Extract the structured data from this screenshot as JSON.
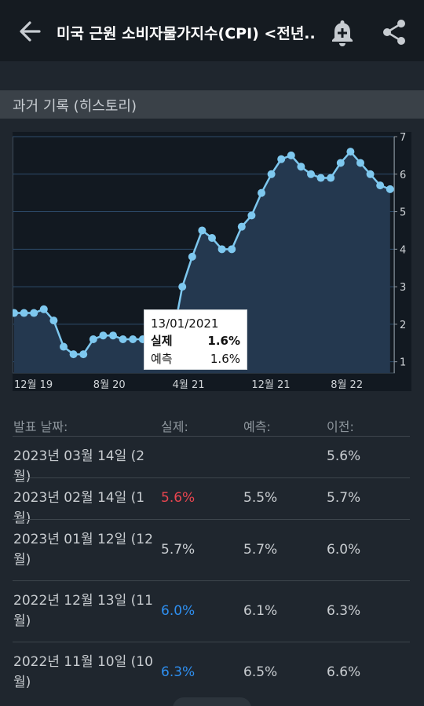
{
  "header": {
    "title": "미국 근원 소비자물가지수(CPI) <전년...",
    "back_icon": "back-arrow-icon",
    "alert_icon": "add-alert-bell-icon",
    "share_icon": "share-icon"
  },
  "section": {
    "title": "과거 기록 (히스토리)"
  },
  "chart_data": {
    "type": "area",
    "x_tick_labels": [
      "12월 19",
      "8월 20",
      "4월 21",
      "12월 21",
      "8월 22"
    ],
    "y_ticks": [
      1,
      2,
      3,
      4,
      5,
      6,
      7
    ],
    "ylim": [
      0.7,
      7
    ],
    "grid": true,
    "series": [
      {
        "values": [
          2.3,
          2.3,
          2.3,
          2.4,
          2.1,
          1.4,
          1.2,
          1.2,
          1.6,
          1.7,
          1.7,
          1.6,
          1.6,
          1.6,
          1.6,
          1.4,
          1.6,
          3.0,
          3.8,
          4.5,
          4.3,
          4.0,
          4.0,
          4.6,
          4.9,
          5.5,
          6.0,
          6.4,
          6.5,
          6.2,
          6.0,
          5.9,
          5.9,
          6.3,
          6.6,
          6.3,
          6.0,
          5.7,
          5.6
        ]
      }
    ],
    "colors": {
      "line": "#7ec8ef",
      "fill": "#24384f",
      "grid": "#2d4b6a",
      "background": "#121921"
    }
  },
  "tooltip": {
    "date": "13/01/2021",
    "actual_label": "실제",
    "actual_value": "1.6%",
    "forecast_label": "예측",
    "forecast_value": "1.6%"
  },
  "table": {
    "headers": [
      "발표 날짜:",
      "실제:",
      "예측:",
      "이전:"
    ],
    "rows": [
      {
        "date": "2023년 03월 14일 (2월)",
        "actual": "",
        "forecast": "",
        "previous": "5.6%",
        "actual_color": ""
      },
      {
        "date": "2023년 02월 14일 (1월)",
        "actual": "5.6%",
        "forecast": "5.5%",
        "previous": "5.7%",
        "actual_color": "red"
      },
      {
        "date": "2023년 01월 12일 (12월)",
        "actual": "5.7%",
        "forecast": "5.7%",
        "previous": "6.0%",
        "actual_color": ""
      },
      {
        "date": "2022년 12월 13일 (11월)",
        "actual": "6.0%",
        "forecast": "6.1%",
        "previous": "6.3%",
        "actual_color": "blue"
      },
      {
        "date": "2022년 11월 10일 (10월)",
        "actual": "6.3%",
        "forecast": "6.5%",
        "previous": "6.6%",
        "actual_color": "blue"
      }
    ]
  }
}
